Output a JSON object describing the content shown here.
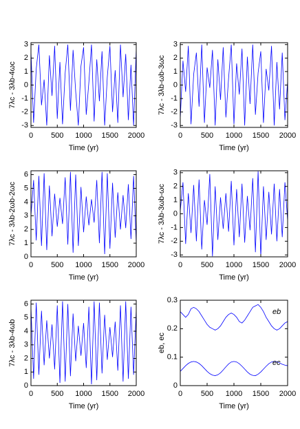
{
  "chart_data": [
    {
      "type": "line",
      "ylabel": "7λc - 3λb-4ωc",
      "xlabel": "Time (yr)",
      "x": [
        0,
        50,
        100,
        150,
        200,
        250,
        300,
        350,
        400,
        450,
        500,
        550,
        600,
        650,
        700,
        750,
        800,
        850,
        900,
        950,
        1000,
        1050,
        1100,
        1150,
        1200,
        1250,
        1300,
        1350,
        1400,
        1450,
        1500,
        1550,
        1600,
        1650,
        1700,
        1750,
        1800,
        1850,
        1900,
        1950,
        2000
      ],
      "series": [
        {
          "color": "#0000ff",
          "values": [
            2.5,
            -2.8,
            1.2,
            3.0,
            -1.5,
            0.4,
            -3.0,
            2.2,
            -0.8,
            2.9,
            -2.5,
            1.7,
            -2.9,
            0.9,
            3.0,
            -1.9,
            2.6,
            -0.5,
            -3.0,
            1.4,
            2.8,
            -2.2,
            0.2,
            3.0,
            -2.7,
            1.9,
            -1.2,
            2.5,
            -3.0,
            0.6,
            2.9,
            -2.0,
            1.1,
            -2.8,
            3.0,
            -0.9,
            2.3,
            -2.6,
            1.5,
            -3.0,
            2.7
          ]
        }
      ],
      "xlim": [
        0,
        2000
      ],
      "xticks": [
        0,
        500,
        1000,
        1500,
        2000
      ],
      "ylim": [
        -3.14,
        3.14
      ],
      "yticks": [
        -3,
        -2,
        -1,
        0,
        1,
        2,
        3
      ]
    },
    {
      "type": "line",
      "ylabel": "7λc - 3λb-ωb-3ωc",
      "xlabel": "Time (yr)",
      "x": [
        0,
        50,
        100,
        150,
        200,
        250,
        300,
        350,
        400,
        450,
        500,
        550,
        600,
        650,
        700,
        750,
        800,
        850,
        900,
        950,
        1000,
        1050,
        1100,
        1150,
        1200,
        1250,
        1300,
        1350,
        1400,
        1450,
        1500,
        1550,
        1600,
        1650,
        1700,
        1750,
        1800,
        1850,
        1900,
        1950,
        2000
      ],
      "series": [
        {
          "color": "#0000ff",
          "values": [
            -2.5,
            1.8,
            -0.5,
            2.9,
            -2.9,
            0.8,
            2.4,
            -1.6,
            3.0,
            -2.8,
            1.3,
            -0.2,
            2.6,
            -3.0,
            1.9,
            -1.1,
            2.8,
            -2.4,
            0.5,
            3.0,
            -2.9,
            1.6,
            -0.7,
            2.7,
            -3.0,
            2.1,
            -1.4,
            3.0,
            -2.2,
            0.9,
            2.5,
            -2.8,
            1.2,
            -0.4,
            2.9,
            -3.0,
            1.7,
            -1.8,
            2.4,
            -2.6,
            0.3
          ]
        }
      ],
      "xlim": [
        0,
        2000
      ],
      "xticks": [
        0,
        500,
        1000,
        1500,
        2000
      ],
      "ylim": [
        -3.14,
        3.14
      ],
      "yticks": [
        -3,
        -2,
        -1,
        0,
        1,
        2,
        3
      ]
    },
    {
      "type": "line",
      "ylabel": "7λc - 3λb-2ωb-2ωc",
      "xlabel": "Time (yr)",
      "x": [
        0,
        50,
        100,
        150,
        200,
        250,
        300,
        350,
        400,
        450,
        500,
        550,
        600,
        650,
        700,
        750,
        800,
        850,
        900,
        950,
        1000,
        1050,
        1100,
        1150,
        1200,
        1250,
        1300,
        1350,
        1400,
        1450,
        1500,
        1550,
        1600,
        1650,
        1700,
        1750,
        1800,
        1850,
        1900,
        1950,
        2000
      ],
      "series": [
        {
          "color": "#0000ff",
          "values": [
            3.0,
            5.6,
            1.2,
            5.9,
            0.8,
            6.1,
            0.5,
            5.2,
            1.5,
            4.6,
            2.2,
            4.3,
            2.4,
            5.8,
            0.9,
            6.2,
            0.3,
            6.0,
            0.8,
            5.1,
            1.8,
            4.4,
            2.3,
            4.2,
            2.5,
            5.6,
            1.0,
            6.2,
            0.2,
            6.1,
            0.6,
            5.4,
            1.4,
            4.7,
            2.0,
            4.5,
            2.1,
            5.3,
            1.3,
            5.9,
            1.0
          ]
        }
      ],
      "xlim": [
        0,
        2000
      ],
      "xticks": [
        0,
        500,
        1000,
        1500,
        2000
      ],
      "ylim": [
        0,
        6.28
      ],
      "yticks": [
        0,
        1,
        2,
        3,
        4,
        5,
        6
      ]
    },
    {
      "type": "line",
      "ylabel": "7λc - 3λb-3ωb-ωc",
      "xlabel": "Time (yr)",
      "x": [
        0,
        50,
        100,
        150,
        200,
        250,
        300,
        350,
        400,
        450,
        500,
        550,
        600,
        650,
        700,
        750,
        800,
        850,
        900,
        950,
        1000,
        1050,
        1100,
        1150,
        1200,
        1250,
        1300,
        1350,
        1400,
        1450,
        1500,
        1550,
        1600,
        1650,
        1700,
        1750,
        1800,
        1850,
        1900,
        1950,
        2000
      ],
      "series": [
        {
          "color": "#0000ff",
          "values": [
            0.2,
            2.3,
            -2.2,
            1.5,
            -1.4,
            2.1,
            -2.0,
            2.5,
            -2.6,
            1.0,
            -0.8,
            2.9,
            -3.1,
            2.0,
            -1.9,
            1.2,
            -1.1,
            1.5,
            -1.3,
            2.4,
            -2.3,
            1.8,
            -1.7,
            2.2,
            -2.1,
            1.3,
            -1.2,
            2.6,
            -2.8,
            3.1,
            -3.1,
            2.0,
            -1.9,
            1.6,
            -1.5,
            2.2,
            -2.0,
            1.8,
            -1.7,
            2.3,
            -0.5
          ]
        }
      ],
      "xlim": [
        0,
        2000
      ],
      "xticks": [
        0,
        500,
        1000,
        1500,
        2000
      ],
      "ylim": [
        -3.14,
        3.14
      ],
      "yticks": [
        -3,
        -2,
        -1,
        0,
        1,
        2,
        3
      ]
    },
    {
      "type": "line",
      "ylabel": "7λc - 3λb-4ωb",
      "xlabel": "Time (yr)",
      "x": [
        0,
        50,
        100,
        150,
        200,
        250,
        300,
        350,
        400,
        450,
        500,
        550,
        600,
        650,
        700,
        750,
        800,
        850,
        900,
        950,
        1000,
        1050,
        1100,
        1150,
        1200,
        1250,
        1300,
        1350,
        1400,
        1450,
        1500,
        1550,
        1600,
        1650,
        1700,
        1750,
        1800,
        1850,
        1900,
        1950,
        2000
      ],
      "series": [
        {
          "color": "#0000ff",
          "values": [
            5.8,
            0.5,
            6.1,
            0.8,
            5.5,
            1.5,
            4.8,
            2.0,
            4.5,
            1.2,
            5.9,
            0.2,
            6.2,
            0.3,
            6.0,
            0.7,
            5.3,
            1.8,
            4.4,
            2.2,
            4.6,
            1.3,
            5.8,
            0.1,
            6.2,
            0.4,
            6.1,
            0.9,
            5.2,
            1.9,
            4.3,
            2.1,
            4.7,
            1.1,
            5.9,
            0.3,
            6.2,
            0.5,
            5.8,
            0.8,
            5.6
          ]
        }
      ],
      "xlim": [
        0,
        2000
      ],
      "xticks": [
        0,
        500,
        1000,
        1500,
        2000
      ],
      "ylim": [
        0,
        6.28
      ],
      "yticks": [
        0,
        1,
        2,
        3,
        4,
        5,
        6
      ]
    },
    {
      "type": "line",
      "ylabel": "eb, ec",
      "xlabel": "Time (yr)",
      "x": [
        0,
        50,
        100,
        150,
        200,
        250,
        300,
        350,
        400,
        450,
        500,
        550,
        600,
        650,
        700,
        750,
        800,
        850,
        900,
        950,
        1000,
        1050,
        1100,
        1150,
        1200,
        1250,
        1300,
        1350,
        1400,
        1450,
        1500,
        1550,
        1600,
        1650,
        1700,
        1750,
        1800,
        1850,
        1900,
        1950,
        2000
      ],
      "series": [
        {
          "name": "eb",
          "color": "#0000ff",
          "values": [
            0.26,
            0.25,
            0.24,
            0.25,
            0.27,
            0.275,
            0.27,
            0.26,
            0.245,
            0.23,
            0.215,
            0.205,
            0.2,
            0.195,
            0.2,
            0.21,
            0.225,
            0.24,
            0.25,
            0.255,
            0.25,
            0.24,
            0.225,
            0.22,
            0.23,
            0.245,
            0.26,
            0.275,
            0.28,
            0.285,
            0.275,
            0.26,
            0.24,
            0.225,
            0.21,
            0.2,
            0.195,
            0.2,
            0.21,
            0.22,
            0.225
          ]
        },
        {
          "name": "ec",
          "color": "#0000ff",
          "values": [
            0.05,
            0.06,
            0.07,
            0.078,
            0.083,
            0.085,
            0.083,
            0.078,
            0.07,
            0.06,
            0.05,
            0.042,
            0.037,
            0.035,
            0.038,
            0.045,
            0.055,
            0.066,
            0.076,
            0.083,
            0.085,
            0.083,
            0.077,
            0.068,
            0.058,
            0.048,
            0.04,
            0.036,
            0.035,
            0.04,
            0.048,
            0.058,
            0.068,
            0.077,
            0.083,
            0.085,
            0.084,
            0.08,
            0.075,
            0.072,
            0.07
          ]
        }
      ],
      "xlim": [
        0,
        2000
      ],
      "xticks": [
        0,
        500,
        1000,
        1500,
        2000
      ],
      "ylim": [
        0,
        0.3
      ],
      "yticks": [
        0,
        0.1,
        0.2,
        0.3
      ]
    }
  ]
}
